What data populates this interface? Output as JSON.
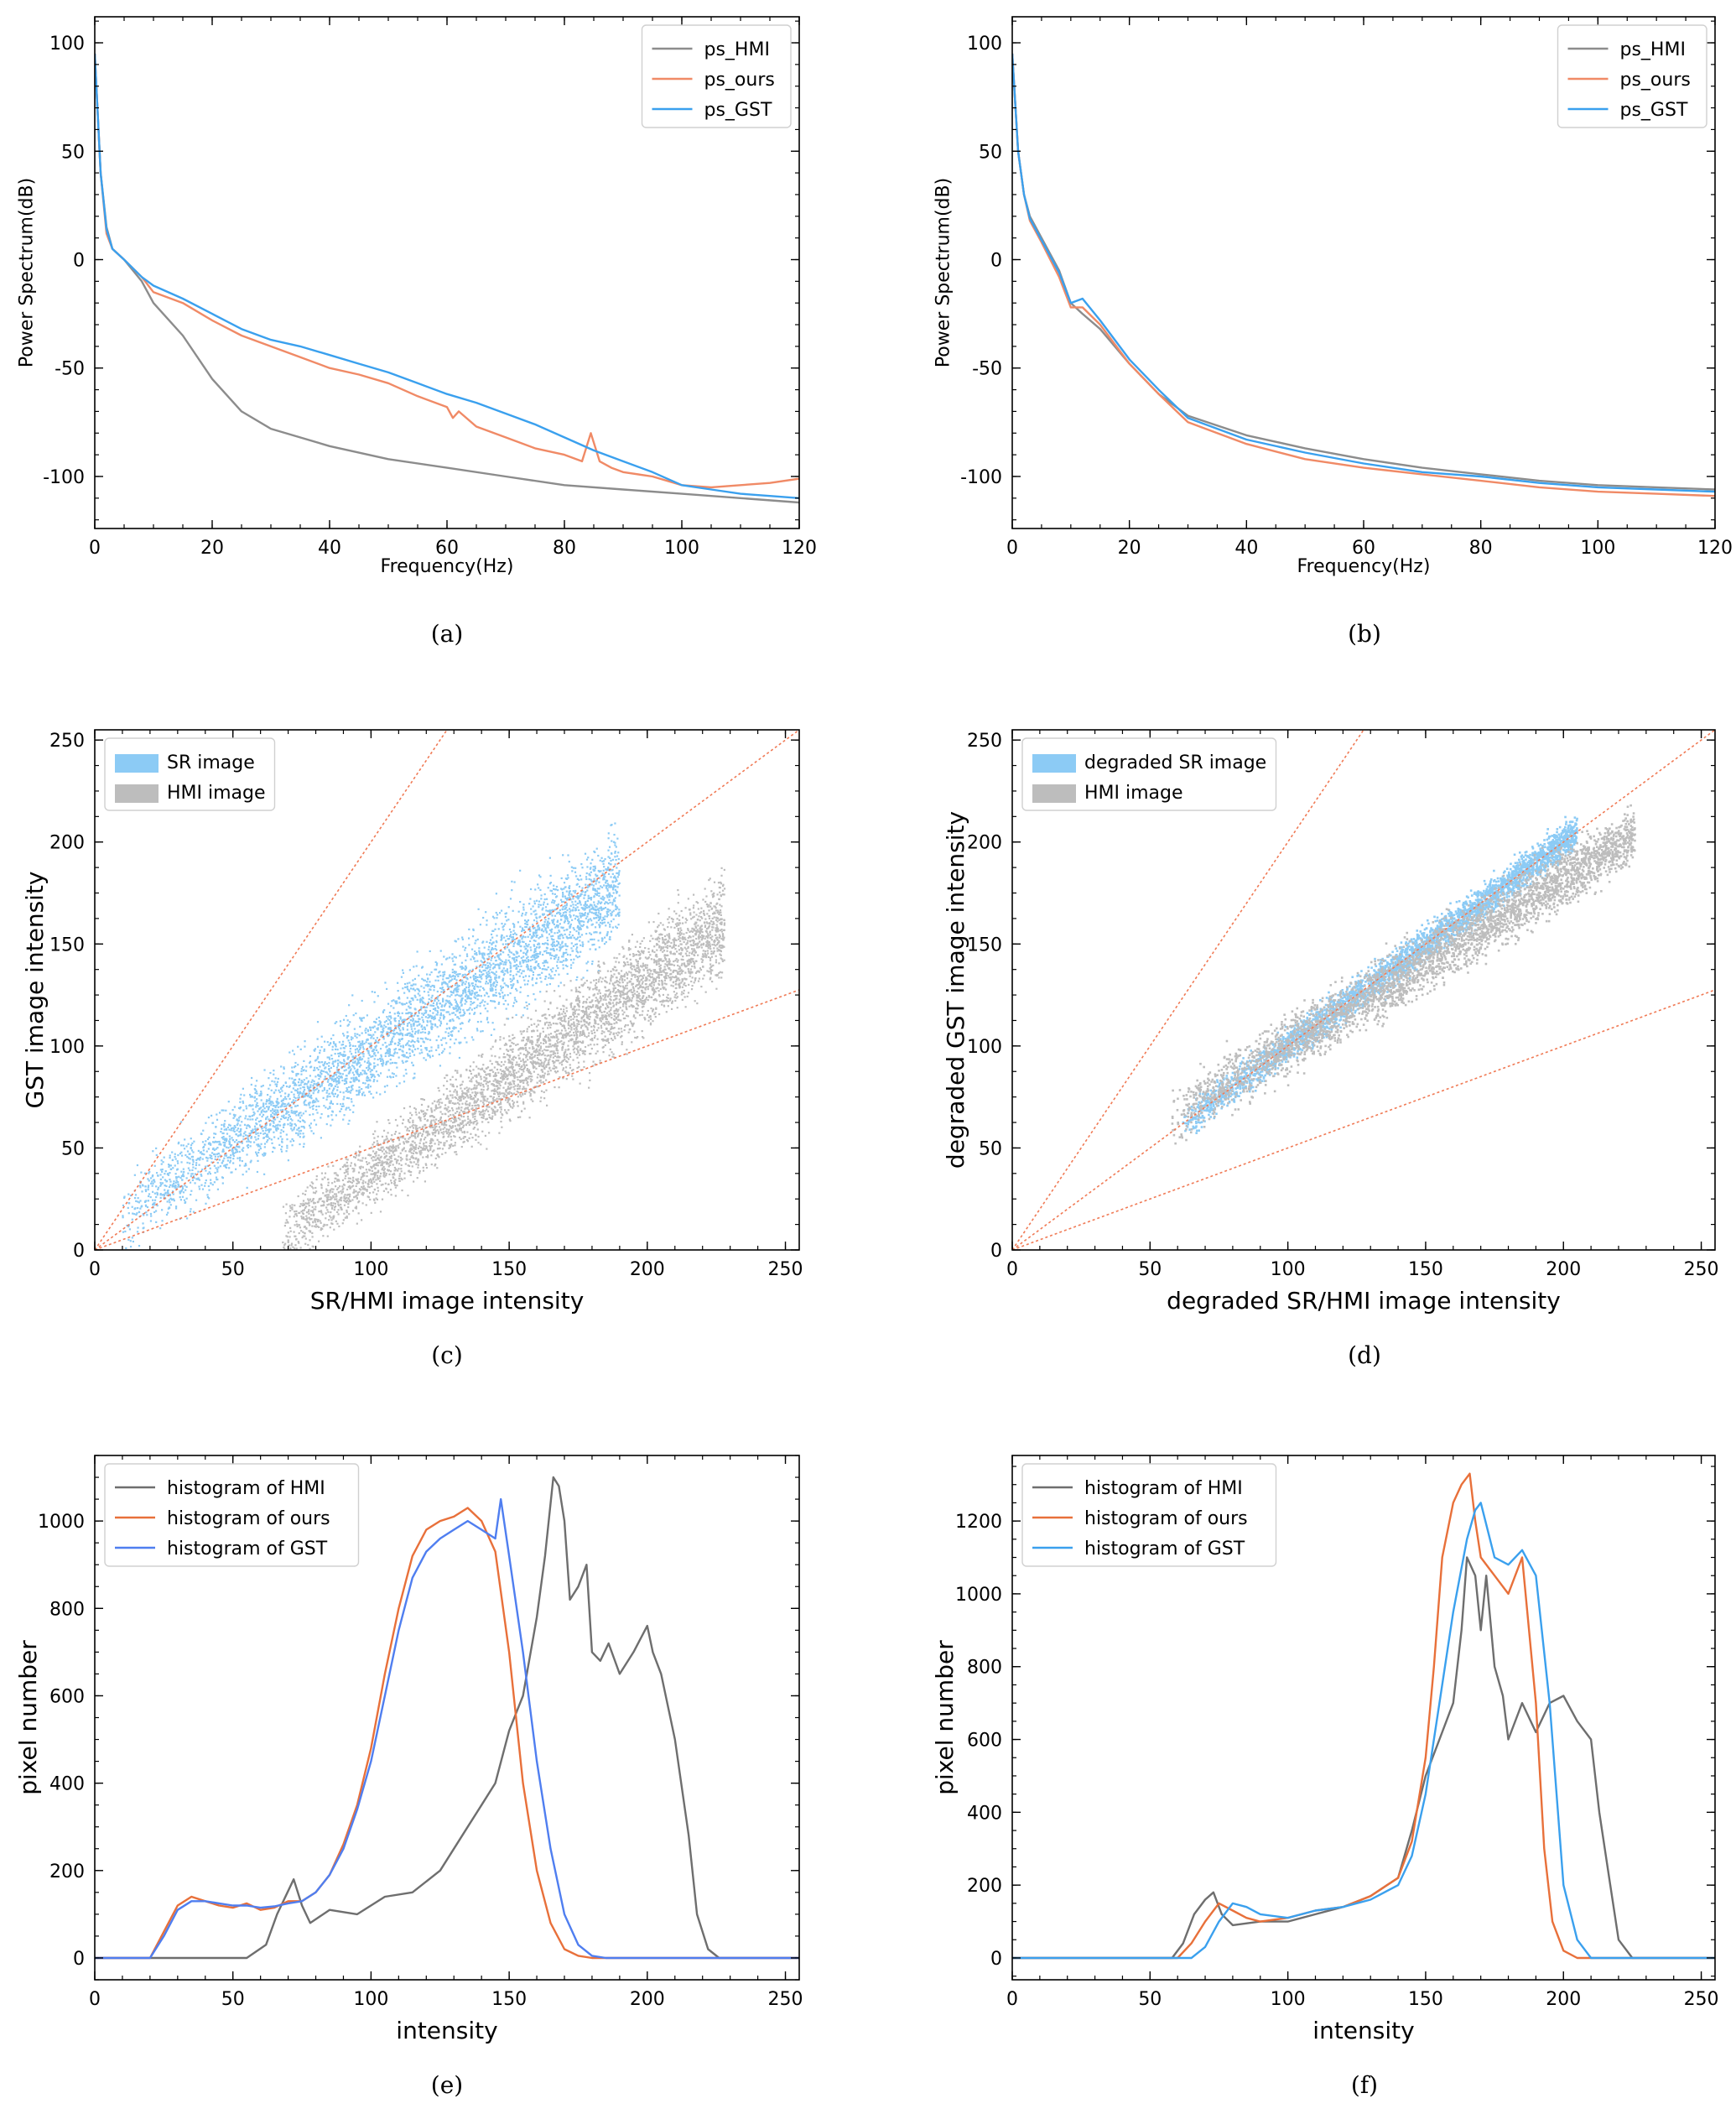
{
  "colors": {
    "hmi": "#8c8c8c",
    "ours": "#f08a66",
    "gst": "#3aa0ee",
    "hist_ours": "#e8703a",
    "hist_gst": "#4f7ef0",
    "scatter_sr": "#8ccbf5",
    "scatter_hmi": "#bdbdbd",
    "ref_line": "#f07a55"
  },
  "chart_data": [
    {
      "id": "a",
      "type": "line",
      "caption": "(a)",
      "xlabel": "Frequency(Hz)",
      "ylabel": "Power Spectrum(dB)",
      "xlim": [
        0,
        120
      ],
      "ylim": [
        -124,
        112
      ],
      "xticks": [
        0,
        20,
        40,
        60,
        80,
        100,
        120
      ],
      "yticks": [
        -100,
        -50,
        0,
        50,
        100
      ],
      "legend_position": "top-right",
      "series": [
        {
          "name": "ps_HMI",
          "color": "#8c8c8c",
          "x": [
            0,
            1,
            2,
            3,
            5,
            8,
            10,
            15,
            20,
            25,
            30,
            40,
            50,
            60,
            70,
            80,
            90,
            100,
            110,
            120
          ],
          "y": [
            95,
            40,
            15,
            5,
            0,
            -10,
            -20,
            -35,
            -55,
            -70,
            -78,
            -86,
            -92,
            -96,
            -100,
            -104,
            -106,
            -108,
            -110,
            -112
          ]
        },
        {
          "name": "ps_ours",
          "color": "#f08a66",
          "x": [
            0,
            1,
            2,
            3,
            5,
            8,
            10,
            15,
            20,
            25,
            30,
            35,
            40,
            45,
            50,
            55,
            60,
            61,
            62,
            65,
            70,
            75,
            80,
            83,
            84.5,
            86,
            88,
            90,
            95,
            100,
            105,
            110,
            115,
            120
          ],
          "y": [
            95,
            40,
            12,
            5,
            0,
            -8,
            -15,
            -20,
            -28,
            -35,
            -40,
            -45,
            -50,
            -53,
            -57,
            -63,
            -68,
            -73,
            -70,
            -77,
            -82,
            -87,
            -90,
            -93,
            -80,
            -93,
            -96,
            -98,
            -100,
            -104,
            -105,
            -104,
            -103,
            -101
          ]
        },
        {
          "name": "ps_GST",
          "color": "#3aa0ee",
          "x": [
            0,
            1,
            2,
            3,
            5,
            8,
            10,
            15,
            20,
            25,
            30,
            35,
            40,
            45,
            50,
            55,
            60,
            65,
            70,
            75,
            80,
            85,
            90,
            95,
            100,
            105,
            110,
            115,
            120
          ],
          "y": [
            95,
            40,
            14,
            5,
            0,
            -8,
            -12,
            -18,
            -25,
            -32,
            -37,
            -40,
            -44,
            -48,
            -52,
            -57,
            -62,
            -66,
            -71,
            -76,
            -82,
            -88,
            -93,
            -98,
            -104,
            -106,
            -108,
            -109,
            -110
          ]
        }
      ]
    },
    {
      "id": "b",
      "type": "line",
      "caption": "(b)",
      "xlabel": "Frequency(Hz)",
      "ylabel": "Power Spectrum(dB)",
      "xlim": [
        0,
        120
      ],
      "ylim": [
        -124,
        112
      ],
      "xticks": [
        0,
        20,
        40,
        60,
        80,
        100,
        120
      ],
      "yticks": [
        -100,
        -50,
        0,
        50,
        100
      ],
      "legend_position": "top-right",
      "series": [
        {
          "name": "ps_HMI",
          "color": "#8c8c8c",
          "x": [
            0,
            1,
            2,
            3,
            5,
            8,
            10,
            12,
            15,
            20,
            25,
            30,
            40,
            50,
            60,
            70,
            80,
            90,
            100,
            110,
            120
          ],
          "y": [
            95,
            50,
            30,
            20,
            10,
            -5,
            -20,
            -25,
            -32,
            -48,
            -62,
            -72,
            -81,
            -87,
            -92,
            -96,
            -99,
            -102,
            -104,
            -105,
            -106
          ]
        },
        {
          "name": "ps_ours",
          "color": "#f08a66",
          "x": [
            0,
            1,
            2,
            3,
            5,
            8,
            10,
            12,
            15,
            20,
            25,
            30,
            40,
            50,
            60,
            70,
            80,
            90,
            100,
            110,
            120
          ],
          "y": [
            95,
            50,
            30,
            18,
            8,
            -8,
            -22,
            -22,
            -30,
            -48,
            -62,
            -75,
            -85,
            -92,
            -96,
            -99,
            -102,
            -105,
            -107,
            -108,
            -109
          ]
        },
        {
          "name": "ps_GST",
          "color": "#3aa0ee",
          "x": [
            0,
            1,
            2,
            3,
            5,
            8,
            10,
            12,
            15,
            20,
            25,
            30,
            40,
            50,
            60,
            70,
            80,
            90,
            100,
            110,
            120
          ],
          "y": [
            95,
            50,
            30,
            19,
            9,
            -6,
            -20,
            -18,
            -28,
            -46,
            -60,
            -73,
            -83,
            -89,
            -94,
            -98,
            -100,
            -103,
            -105,
            -106,
            -107
          ]
        }
      ]
    },
    {
      "id": "c",
      "type": "scatter",
      "caption": "(c)",
      "xlabel": "SR/HMI image intensity",
      "ylabel": "GST image intensity",
      "xlim": [
        0,
        255
      ],
      "ylim": [
        0,
        255
      ],
      "xticks": [
        0,
        50,
        100,
        150,
        200,
        250
      ],
      "yticks": [
        0,
        50,
        100,
        150,
        200,
        250
      ],
      "legend_position": "top-left",
      "reference_slopes": [
        2,
        1,
        0.5
      ],
      "series": [
        {
          "name": "SR image",
          "color": "#8ccbf5",
          "distribution": {
            "x_range": [
              10,
              190
            ],
            "y_center_slope": 0.9,
            "y_center_offset": 8,
            "spread": 28
          }
        },
        {
          "name": "HMI image",
          "color": "#bdbdbd",
          "distribution": {
            "x_range": [
              68,
              228
            ],
            "y_center_slope": 0.95,
            "y_center_offset": -57,
            "spread": 25
          }
        }
      ]
    },
    {
      "id": "d",
      "type": "scatter",
      "caption": "(d)",
      "xlabel": "degraded SR/HMI image intensity",
      "ylabel": "degraded GST image intensity",
      "xlim": [
        0,
        255
      ],
      "ylim": [
        0,
        255
      ],
      "xticks": [
        0,
        50,
        100,
        150,
        200,
        250
      ],
      "yticks": [
        0,
        50,
        100,
        150,
        200,
        250
      ],
      "legend_position": "top-left",
      "reference_slopes": [
        2,
        1,
        0.5
      ],
      "series": [
        {
          "name": "degraded SR image",
          "color": "#8ccbf5",
          "distribution": {
            "x_range": [
              62,
              205
            ],
            "y_center_slope": 1.0,
            "y_center_offset": 0,
            "spread": 8
          }
        },
        {
          "name": "HMI image",
          "color": "#bdbdbd",
          "distribution": {
            "x_range": [
              58,
              226
            ],
            "y_center_slope": 0.82,
            "y_center_offset": 18,
            "spread": 14
          }
        }
      ]
    },
    {
      "id": "e",
      "type": "line",
      "caption": "(e)",
      "xlabel": "intensity",
      "ylabel": "pixel number",
      "xlim": [
        0,
        255
      ],
      "ylim": [
        -50,
        1150
      ],
      "xticks": [
        0,
        50,
        100,
        150,
        200,
        250
      ],
      "yticks": [
        0,
        200,
        400,
        600,
        800,
        1000
      ],
      "legend_position": "top-left",
      "series": [
        {
          "name": "histogram of HMI",
          "color": "#6e6e6e",
          "x": [
            0,
            55,
            62,
            66,
            72,
            75,
            78,
            85,
            95,
            105,
            115,
            125,
            135,
            140,
            145,
            150,
            155,
            160,
            163,
            166,
            168,
            170,
            172,
            175,
            178,
            180,
            183,
            186,
            190,
            195,
            200,
            202,
            205,
            210,
            215,
            218,
            222,
            226,
            230,
            255
          ],
          "y": [
            0,
            0,
            30,
            100,
            180,
            120,
            80,
            110,
            100,
            140,
            150,
            200,
            300,
            350,
            400,
            520,
            600,
            780,
            920,
            1100,
            1080,
            1000,
            820,
            850,
            900,
            700,
            680,
            720,
            650,
            700,
            760,
            700,
            650,
            500,
            280,
            100,
            20,
            0,
            0,
            0
          ]
        },
        {
          "name": "histogram of ours",
          "color": "#e8703a",
          "x": [
            0,
            20,
            25,
            30,
            35,
            40,
            45,
            50,
            55,
            60,
            65,
            70,
            75,
            80,
            85,
            90,
            95,
            100,
            105,
            110,
            115,
            120,
            125,
            130,
            135,
            140,
            145,
            150,
            155,
            160,
            165,
            170,
            175,
            180,
            255
          ],
          "y": [
            0,
            0,
            60,
            120,
            140,
            130,
            120,
            115,
            125,
            110,
            115,
            130,
            130,
            150,
            190,
            260,
            350,
            480,
            650,
            800,
            920,
            980,
            1000,
            1010,
            1030,
            1000,
            930,
            700,
            400,
            200,
            80,
            20,
            5,
            0,
            0
          ]
        },
        {
          "name": "histogram of GST",
          "color": "#4f7ef0",
          "x": [
            0,
            20,
            25,
            30,
            35,
            40,
            45,
            50,
            55,
            60,
            65,
            70,
            75,
            80,
            85,
            90,
            95,
            100,
            105,
            110,
            115,
            120,
            125,
            130,
            135,
            140,
            145,
            147,
            150,
            155,
            160,
            165,
            170,
            175,
            180,
            185,
            255
          ],
          "y": [
            0,
            0,
            50,
            110,
            130,
            130,
            125,
            120,
            120,
            115,
            118,
            125,
            130,
            150,
            190,
            250,
            340,
            450,
            600,
            750,
            870,
            930,
            960,
            980,
            1000,
            980,
            960,
            1050,
            920,
            700,
            450,
            250,
            100,
            30,
            5,
            0,
            0
          ]
        }
      ]
    },
    {
      "id": "f",
      "type": "line",
      "caption": "(f)",
      "xlabel": "intensity",
      "ylabel": "pixel number",
      "xlim": [
        0,
        255
      ],
      "ylim": [
        -60,
        1380
      ],
      "xticks": [
        0,
        50,
        100,
        150,
        200,
        250
      ],
      "yticks": [
        0,
        200,
        400,
        600,
        800,
        1000,
        1200
      ],
      "legend_position": "top-left",
      "series": [
        {
          "name": "histogram of HMI",
          "color": "#6e6e6e",
          "x": [
            0,
            58,
            62,
            66,
            70,
            73,
            76,
            80,
            90,
            100,
            110,
            120,
            130,
            140,
            145,
            150,
            155,
            160,
            163,
            165,
            168,
            170,
            172,
            175,
            178,
            180,
            185,
            190,
            195,
            200,
            205,
            210,
            213,
            217,
            220,
            225,
            255
          ],
          "y": [
            0,
            0,
            40,
            120,
            160,
            180,
            120,
            90,
            100,
            100,
            120,
            140,
            170,
            220,
            350,
            500,
            600,
            700,
            900,
            1100,
            1050,
            900,
            1050,
            800,
            720,
            600,
            700,
            620,
            700,
            720,
            650,
            600,
            400,
            200,
            50,
            0,
            0
          ]
        },
        {
          "name": "histogram of ours",
          "color": "#e8703a",
          "x": [
            0,
            60,
            65,
            70,
            75,
            80,
            85,
            90,
            100,
            110,
            120,
            130,
            140,
            145,
            150,
            153,
            156,
            160,
            163,
            166,
            168,
            170,
            175,
            180,
            185,
            190,
            193,
            196,
            200,
            205,
            255
          ],
          "y": [
            0,
            0,
            40,
            100,
            150,
            130,
            110,
            100,
            110,
            130,
            140,
            170,
            220,
            320,
            550,
            800,
            1100,
            1250,
            1300,
            1330,
            1200,
            1100,
            1050,
            1000,
            1100,
            700,
            300,
            100,
            20,
            0,
            0
          ]
        },
        {
          "name": "histogram of GST",
          "color": "#3aa0ee",
          "x": [
            0,
            65,
            70,
            75,
            80,
            85,
            90,
            100,
            110,
            120,
            130,
            140,
            145,
            150,
            155,
            160,
            165,
            168,
            170,
            175,
            180,
            185,
            190,
            195,
            198,
            200,
            205,
            210,
            255
          ],
          "y": [
            0,
            0,
            30,
            100,
            150,
            140,
            120,
            110,
            130,
            140,
            160,
            200,
            280,
            450,
            700,
            950,
            1150,
            1230,
            1250,
            1100,
            1080,
            1120,
            1050,
            700,
            400,
            200,
            50,
            0,
            0
          ]
        }
      ]
    }
  ]
}
